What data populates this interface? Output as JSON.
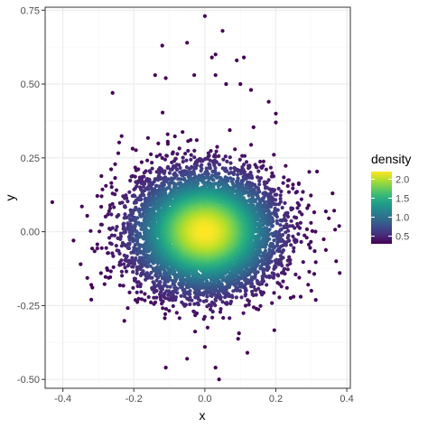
{
  "chart_data": {
    "type": "scatter",
    "title": "",
    "xlabel": "x",
    "ylabel": "y",
    "xlim": [
      -0.45,
      0.41
    ],
    "ylim": [
      -0.53,
      0.76
    ],
    "x_ticks": [
      -0.4,
      -0.2,
      0.0,
      0.2,
      0.4
    ],
    "x_tick_labels": [
      "-0.4",
      "-0.2",
      "0.0",
      "0.2",
      "0.4"
    ],
    "y_ticks": [
      -0.5,
      -0.25,
      0.0,
      0.25,
      0.5,
      0.75
    ],
    "y_tick_labels": [
      "-0.50",
      "-0.25",
      "0.00",
      "0.25",
      "0.50",
      "0.75"
    ],
    "grid": true,
    "theme": "bw",
    "color_scale": "viridis",
    "legend": {
      "title": "density",
      "placement": "right",
      "breaks": [
        2.0,
        1.5,
        1.0,
        0.5
      ],
      "labels": [
        "2.0",
        "1.5",
        "1.0",
        "0.5"
      ],
      "min": 0.3,
      "max": 2.2
    },
    "distribution": {
      "kind": "bivariate normal (approx.)",
      "center": [
        0.0,
        0.0
      ],
      "sd_x": 0.1,
      "sd_y": 0.1,
      "n_points": 8000
    },
    "outlier_points": [
      [
        -0.43,
        0.1
      ],
      [
        -0.37,
        -0.03
      ],
      [
        -0.35,
        -0.11
      ],
      [
        -0.32,
        -0.18
      ],
      [
        -0.32,
        -0.23
      ],
      [
        -0.26,
        0.47
      ],
      [
        -0.14,
        0.53
      ],
      [
        -0.12,
        0.63
      ],
      [
        -0.11,
        0.52
      ],
      [
        -0.05,
        0.64
      ],
      [
        -0.03,
        0.53
      ],
      [
        0.0,
        0.73
      ],
      [
        0.02,
        0.59
      ],
      [
        0.03,
        0.6
      ],
      [
        0.03,
        0.53
      ],
      [
        0.05,
        0.68
      ],
      [
        0.06,
        0.5
      ],
      [
        0.09,
        0.58
      ],
      [
        0.11,
        0.59
      ],
      [
        0.1,
        0.5
      ],
      [
        0.13,
        0.48
      ],
      [
        0.18,
        0.44
      ],
      [
        0.2,
        0.37
      ],
      [
        0.2,
        0.4
      ],
      [
        0.36,
        0.13
      ],
      [
        0.37,
        -0.1
      ],
      [
        0.38,
        -0.14
      ],
      [
        0.3,
        -0.2
      ],
      [
        0.25,
        -0.22
      ],
      [
        0.27,
        -0.22
      ],
      [
        -0.11,
        -0.46
      ],
      [
        -0.05,
        -0.43
      ],
      [
        0.0,
        -0.39
      ],
      [
        0.03,
        -0.46
      ],
      [
        0.04,
        -0.5
      ],
      [
        0.12,
        -0.41
      ]
    ]
  },
  "colors": {
    "viridis": [
      "#440154",
      "#482878",
      "#3e4989",
      "#31688e",
      "#26828e",
      "#1f9e89",
      "#35b779",
      "#6ece58",
      "#b5de2b",
      "#fde725"
    ],
    "grid_major": "#ebebeb",
    "grid_minor": "#f5f5f5",
    "panel_border": "#333333"
  }
}
